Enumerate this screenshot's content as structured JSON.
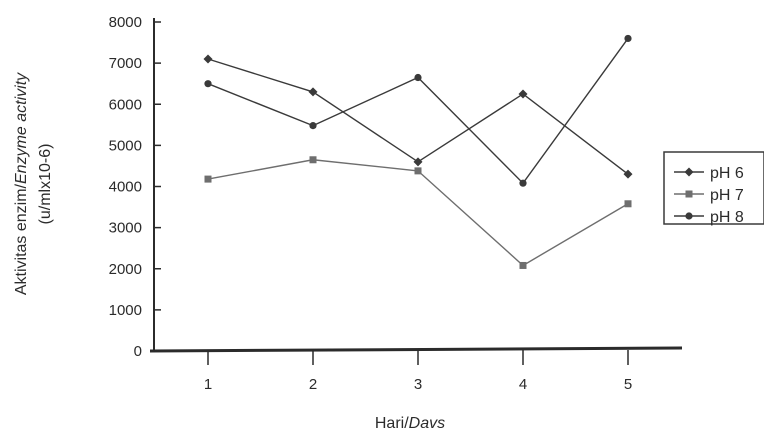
{
  "chart_data": {
    "type": "line",
    "title": "",
    "ylabel": {
      "line1_a": "Aktivitas enzim/",
      "line1_b": "Enzyme activity",
      "line2": "(u/mlx10-6)"
    },
    "xlabel": {
      "a": "Hari/",
      "b": "Davs"
    },
    "x": [
      1,
      2,
      3,
      4,
      5
    ],
    "x_tick_labels": [
      "1",
      "2",
      "3",
      "4",
      "5"
    ],
    "y_tick_labels": [
      "0",
      "1000",
      "2000",
      "3000",
      "4000",
      "5000",
      "6000",
      "7000",
      "8000"
    ],
    "ylim": [
      0,
      8000
    ],
    "grid": false,
    "legend_position": "right",
    "series": [
      {
        "name": "pH 6",
        "values": [
          7100,
          6300,
          4600,
          6250,
          4300
        ],
        "marker": "diamond",
        "color": "#3a3a3a"
      },
      {
        "name": "pH 7",
        "values": [
          4180,
          4650,
          4380,
          2080,
          3580
        ],
        "marker": "square",
        "color": "#6e6e6e"
      },
      {
        "name": "pH 8",
        "values": [
          6500,
          5480,
          6650,
          4080,
          7600
        ],
        "marker": "circle",
        "color": "#3a3a3a"
      }
    ]
  }
}
